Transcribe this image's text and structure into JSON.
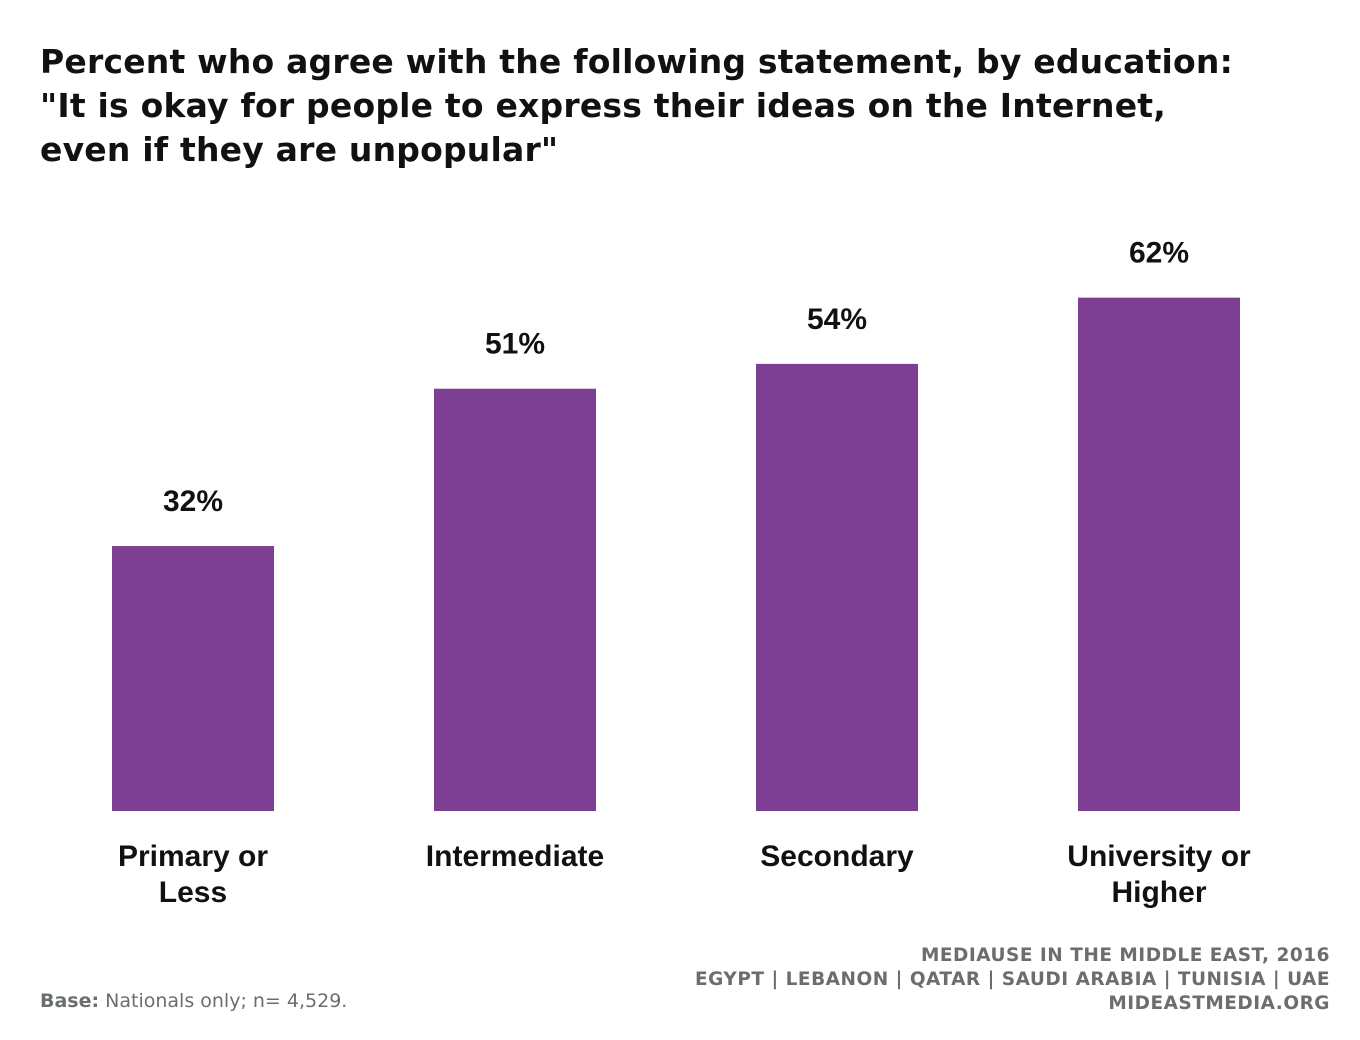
{
  "title_lines": [
    "Percent who agree with the following statement, by education:",
    "\"It is okay for people to express their ideas on the Internet,",
    "even if they are unpopular\""
  ],
  "chart_data": {
    "type": "bar",
    "categories": [
      [
        "Primary or",
        "Less"
      ],
      [
        "Intermediate"
      ],
      [
        "Secondary"
      ],
      [
        "University or",
        "Higher"
      ]
    ],
    "values": [
      32,
      51,
      54,
      62
    ],
    "value_labels": [
      "32%",
      "51%",
      "54%",
      "62%"
    ],
    "bar_color": "#7d3f91",
    "ylim": [
      0,
      100
    ],
    "grid": false,
    "legend": "none"
  },
  "footer": {
    "base_label": "Base:",
    "base_text": " Nationals only; n= 4,529.",
    "source_lines": [
      "MEDIAUSE IN THE MIDDLE EAST, 2016",
      "EGYPT | LEBANON | QATAR | SAUDI ARABIA | TUNISIA | UAE",
      "MIDEASTMEDIA.ORG"
    ]
  }
}
